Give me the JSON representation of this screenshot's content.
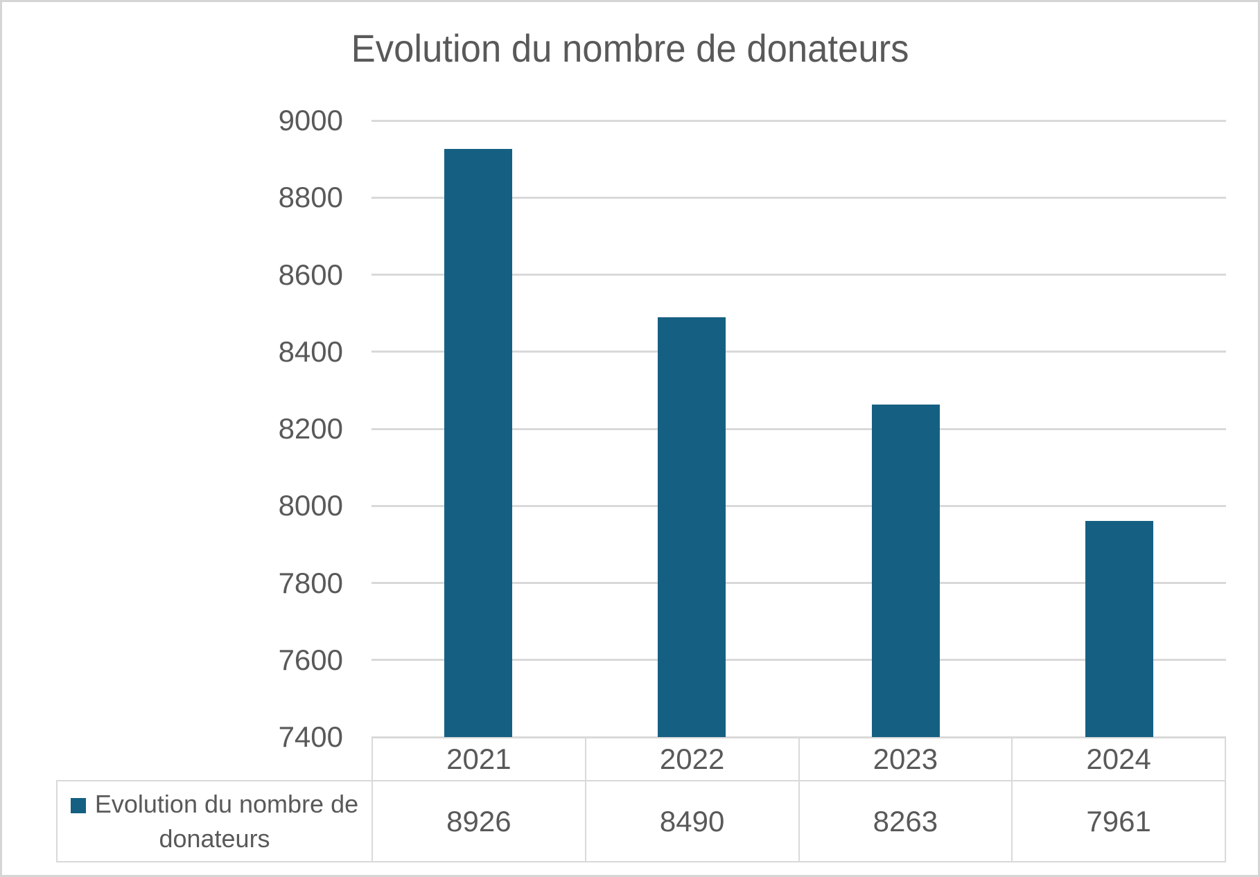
{
  "window": {
    "background": "#ffffff",
    "border_color": "#d5d5d5"
  },
  "colors": {
    "accent": "#156082",
    "text": "#595959",
    "gridline": "#d9d9d9",
    "table_border": "#d9d9d9"
  },
  "chart_data": {
    "type": "bar",
    "title": "Evolution du nombre de donateurs",
    "categories": [
      "2021",
      "2022",
      "2023",
      "2024"
    ],
    "series": [
      {
        "name": "Evolution du nombre de donateurs",
        "color": "#156082",
        "values": [
          8926,
          8490,
          8263,
          7961
        ]
      }
    ],
    "xlabel": "",
    "ylabel": "",
    "ylim": [
      7400,
      9000
    ],
    "ytick_step": 200,
    "yticks": [
      9000,
      8800,
      8600,
      8400,
      8200,
      8000,
      7800,
      7600,
      7400
    ],
    "grid": true,
    "gridlines": "horizontal",
    "legend_position": "bottom-left-of-data-table",
    "data_table_shown": true
  }
}
